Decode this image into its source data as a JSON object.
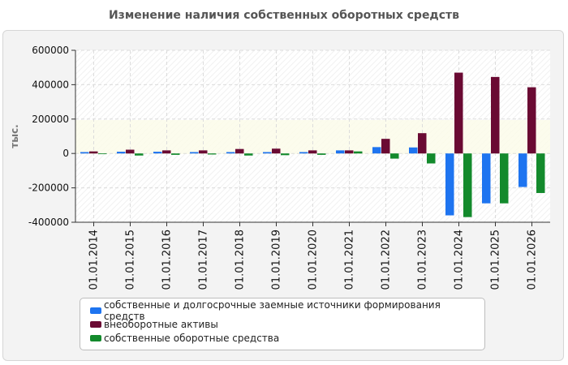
{
  "title": "Изменение наличия собственных оборотных средств",
  "colors": {
    "s1": "#1e74f0",
    "s2": "#6a0a33",
    "s3": "#138a2c"
  },
  "chart_data": {
    "type": "bar",
    "title": "Изменение наличия собственных оборотных средств",
    "xlabel": "",
    "ylabel": "тыс.",
    "ylim": [
      -400000,
      600000
    ],
    "yticks": [
      600000,
      400000,
      200000,
      0,
      -200000,
      -400000
    ],
    "ytick_labels": [
      "600000",
      "400000",
      "200000",
      "0",
      "-200000",
      "-400000"
    ],
    "grid": true,
    "legend_position": "bottom",
    "categories": [
      "01.01.2014",
      "01.01.2015",
      "01.01.2016",
      "01.01.2017",
      "01.01.2018",
      "01.01.2019",
      "01.01.2020",
      "01.01.2021",
      "01.01.2022",
      "01.01.2023",
      "01.01.2024",
      "01.01.2025",
      "01.01.2026"
    ],
    "series": [
      {
        "name": "собственные и долгосрочные заемные источники формирования средств",
        "color": "#1e74f0",
        "values": [
          8000,
          10000,
          10000,
          8000,
          8000,
          8000,
          8000,
          18000,
          37000,
          35000,
          -360000,
          -290000,
          -195000
        ]
      },
      {
        "name": "внеоборотные активы",
        "color": "#6a0a33",
        "values": [
          12000,
          22000,
          18000,
          18000,
          26000,
          28000,
          18000,
          18000,
          85000,
          118000,
          470000,
          445000,
          385000
        ]
      },
      {
        "name": "собственные оборотные средства",
        "color": "#138a2c",
        "values": [
          -4000,
          -12000,
          -8000,
          -6000,
          -12000,
          -10000,
          -8000,
          12000,
          -30000,
          -58000,
          -370000,
          -290000,
          -230000
        ]
      }
    ]
  }
}
